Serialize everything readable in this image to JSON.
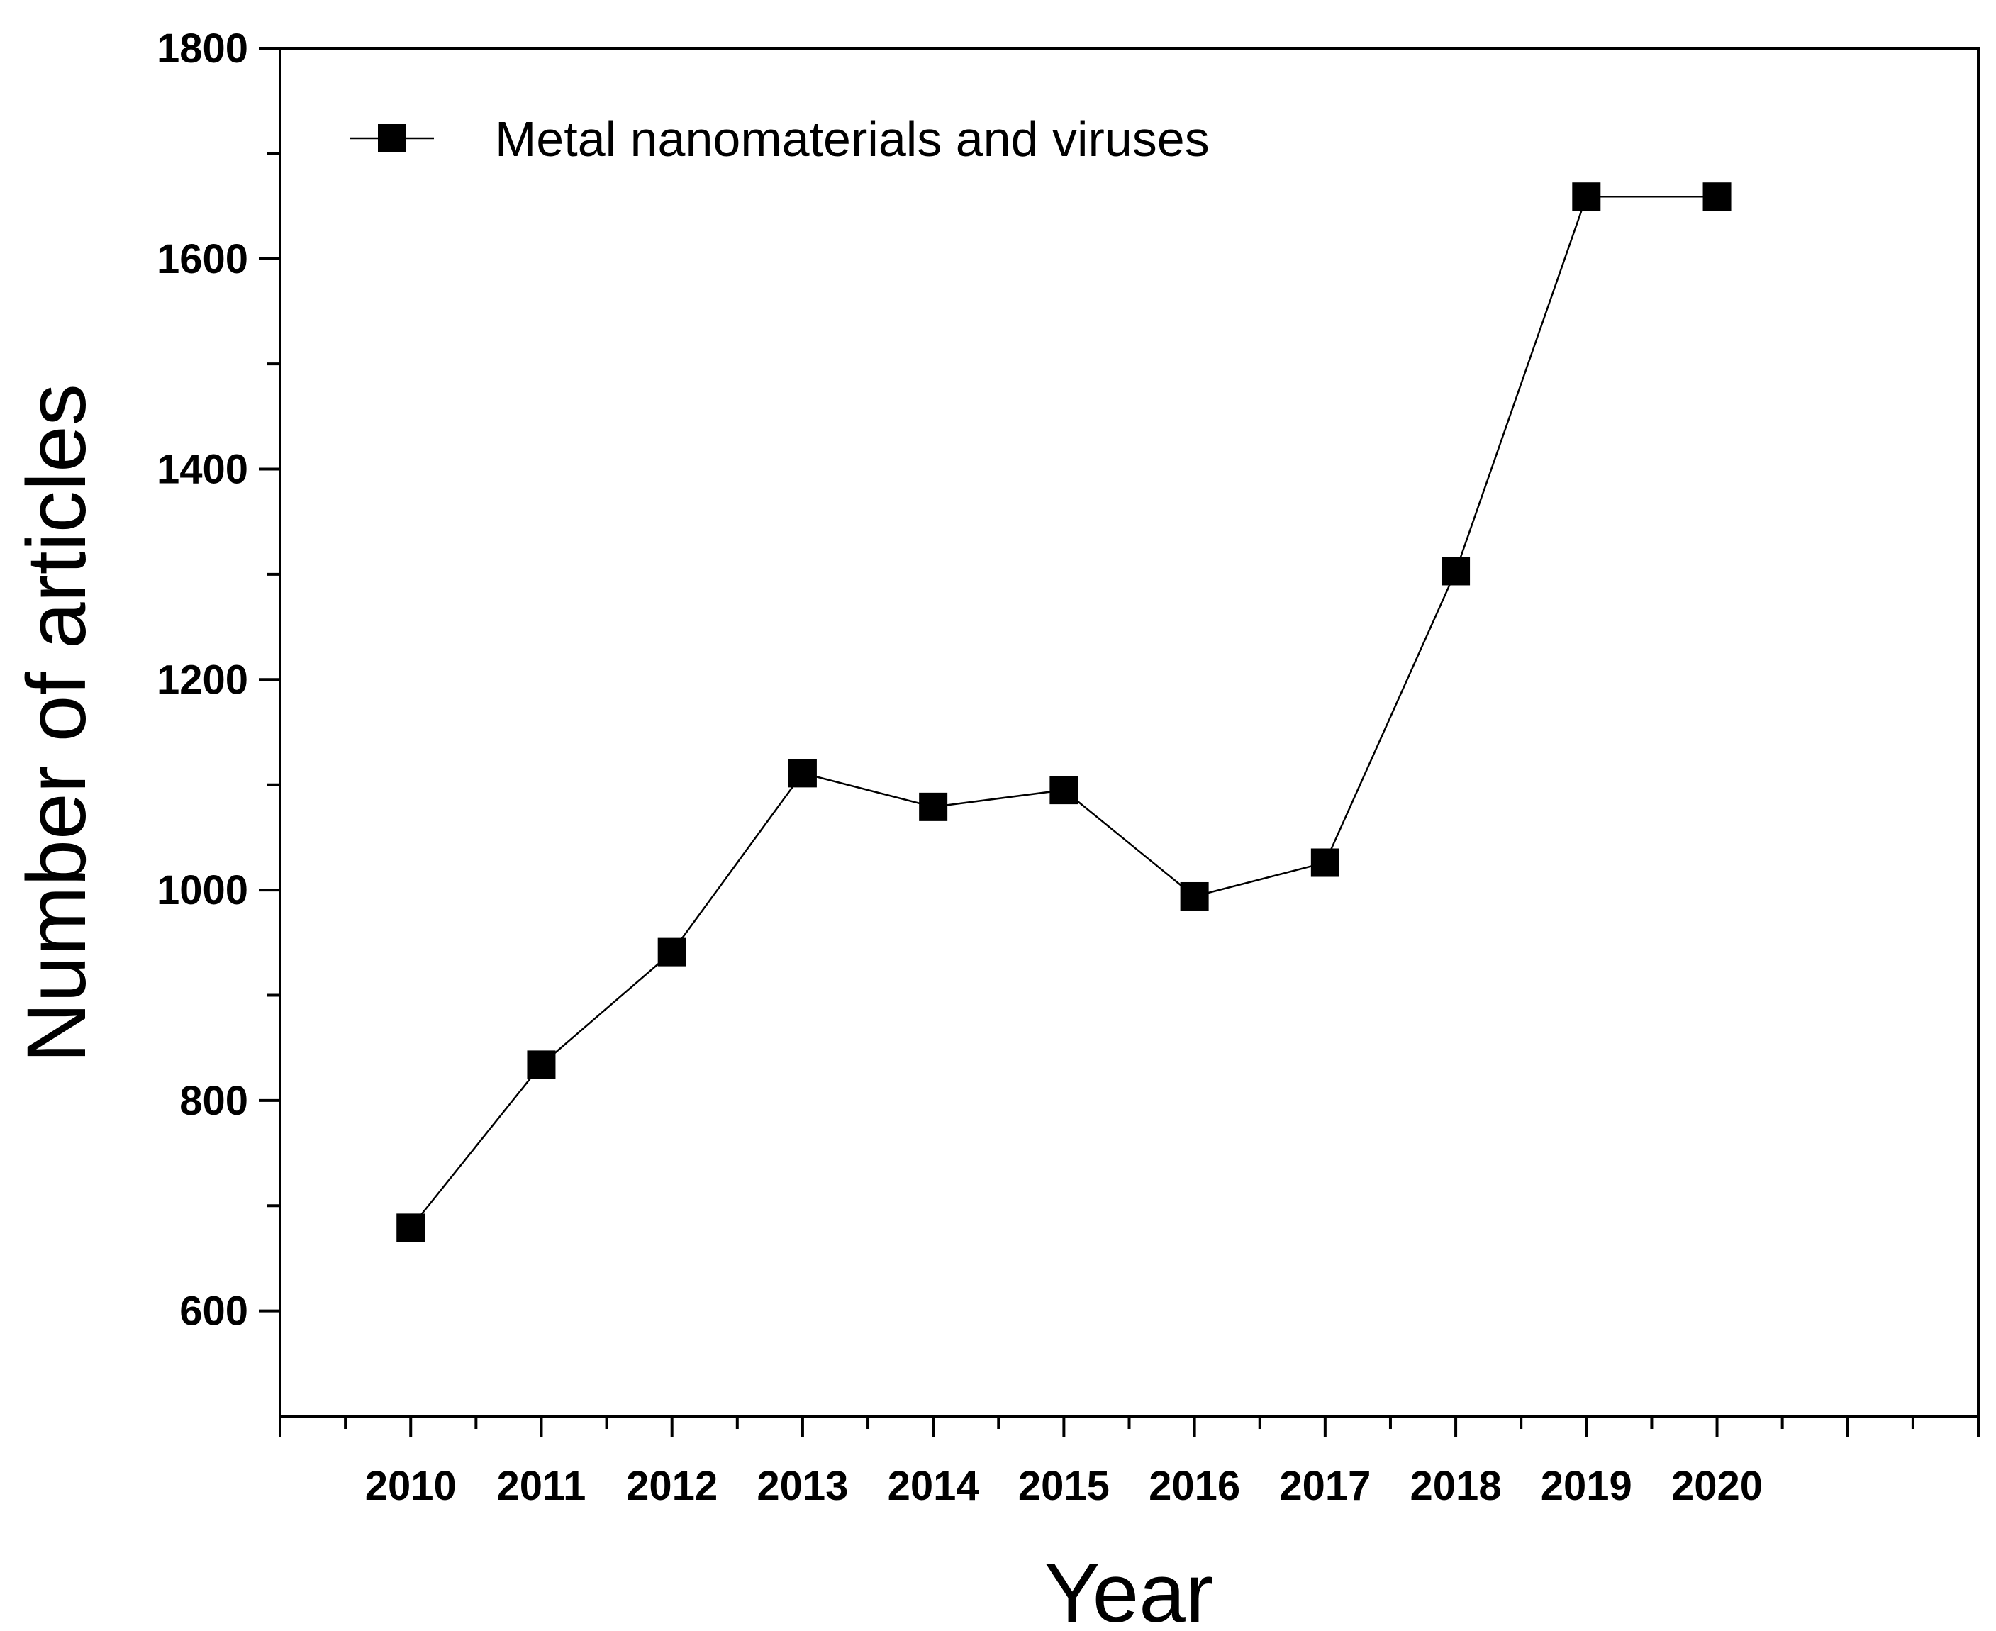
{
  "chart_data": {
    "type": "line",
    "title": "",
    "xlabel": "Year",
    "ylabel": "Number of articles",
    "x": [
      "2010",
      "2011",
      "2012",
      "2013",
      "2014",
      "2015",
      "2016",
      "2017",
      "2018",
      "2019",
      "2020"
    ],
    "series": [
      {
        "name": "Metal nanomaterials and viruses",
        "marker": "square",
        "color": "#000000",
        "values": [
          679,
          834,
          941,
          1111,
          1079,
          1095,
          994,
          1026,
          1303,
          1659,
          1659
        ]
      }
    ],
    "ylim": [
      500,
      1800
    ],
    "yticks": [
      "600",
      "800",
      "1000",
      "1200",
      "1400",
      "1600",
      "1800"
    ],
    "xlim_years": [
      2009,
      2022
    ],
    "grid": false,
    "legend_position": "top-left"
  }
}
